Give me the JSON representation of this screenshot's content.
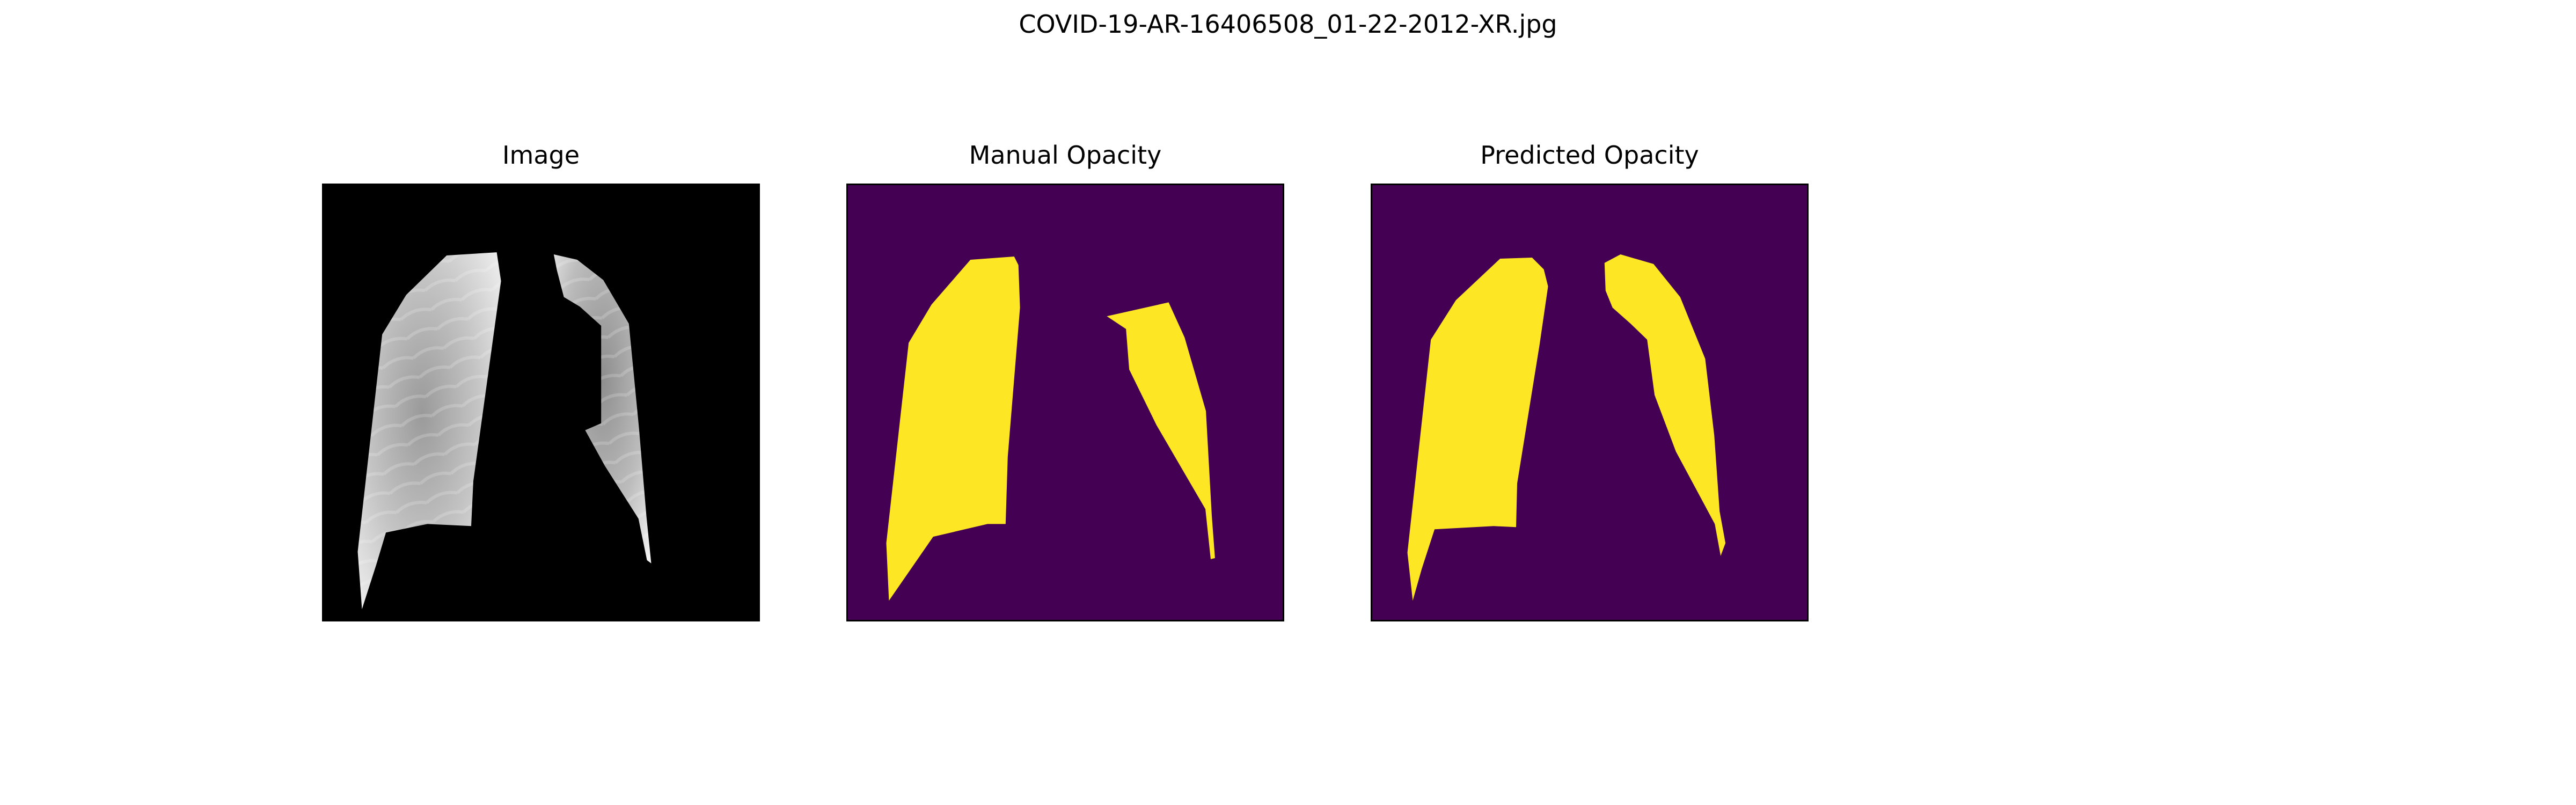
{
  "figure": {
    "title": "COVID-19-AR-16406508_01-22-2012-XR.jpg"
  },
  "panels": [
    {
      "title": "Image",
      "content": "masked chest x-ray lungs"
    },
    {
      "title": "Manual Opacity",
      "content": "lung opacity mask"
    },
    {
      "title": "Predicted Opacity",
      "content": "lung opacity mask"
    }
  ],
  "colors": {
    "image_background": "#000000",
    "mask_background": "#440154",
    "mask_foreground": "#fde725"
  }
}
